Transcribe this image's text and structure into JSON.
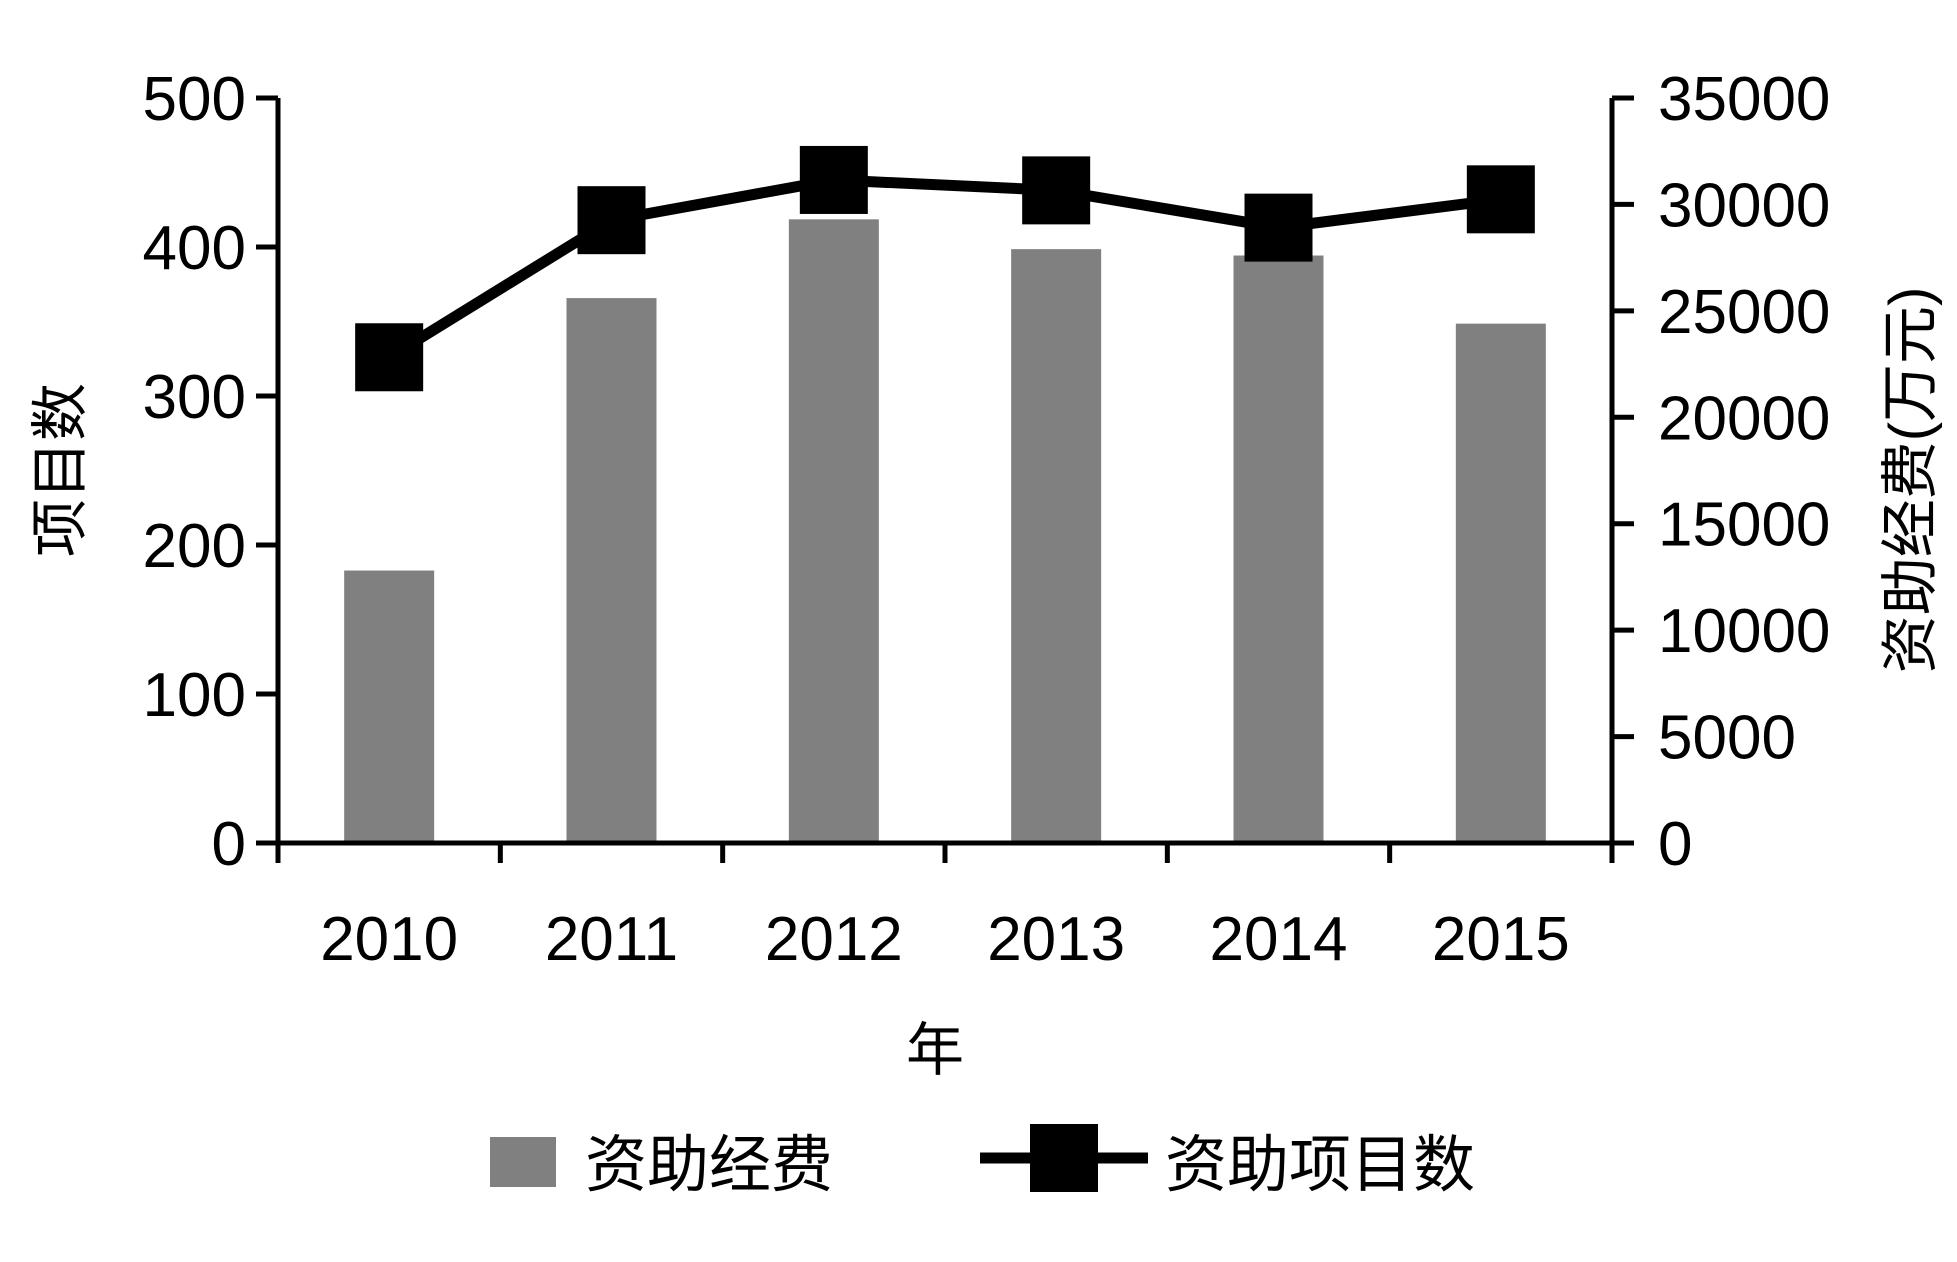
{
  "chart_data": {
    "type": "bar+line",
    "categories": [
      "2010",
      "2011",
      "2012",
      "2013",
      "2014",
      "2015"
    ],
    "xlabel": "年",
    "ylabel_left": "项目数",
    "ylabel_right": "资助经费(万元)",
    "ylim_left": [
      0,
      500
    ],
    "yticks_left": [
      "0",
      "100",
      "200",
      "300",
      "400",
      "500"
    ],
    "ylim_right": [
      0,
      35000
    ],
    "yticks_right": [
      "0",
      "5000",
      "10000",
      "15000",
      "20000",
      "25000",
      "30000",
      "35000"
    ],
    "grid": false,
    "legend_position": "bottom",
    "series": [
      {
        "name": "资助经费",
        "type": "bar",
        "axis": "right",
        "color": "#808080",
        "values": [
          12800,
          25600,
          29300,
          27900,
          27600,
          24400
        ]
      },
      {
        "name": "资助项目数",
        "type": "line",
        "axis": "left",
        "color": "#000000",
        "marker": "square",
        "values": [
          326,
          418,
          445,
          438,
          413,
          432
        ]
      }
    ]
  }
}
